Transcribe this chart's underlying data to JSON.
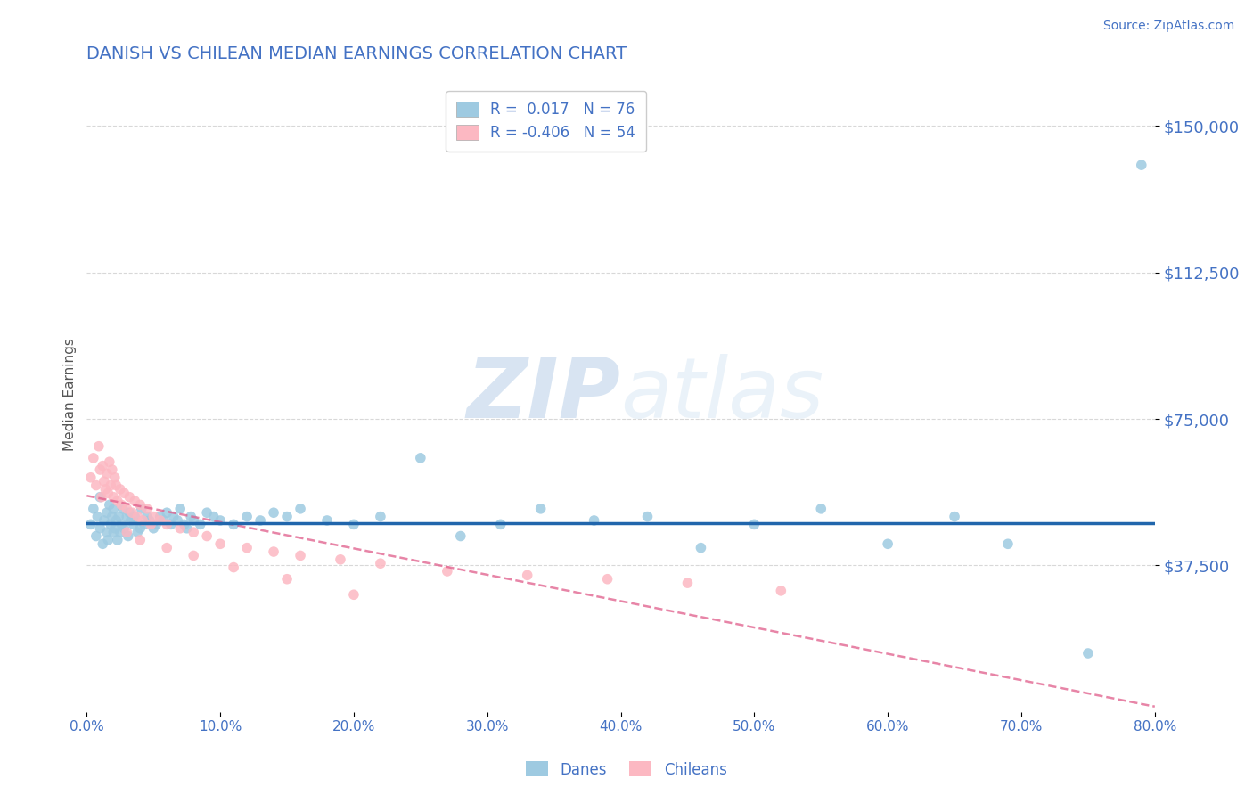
{
  "title": "DANISH VS CHILEAN MEDIAN EARNINGS CORRELATION CHART",
  "source": "Source: ZipAtlas.com",
  "xlabel": "",
  "ylabel": "Median Earnings",
  "xlim": [
    0.0,
    0.8
  ],
  "ylim": [
    0,
    162500
  ],
  "yticks": [
    37500,
    75000,
    112500,
    150000
  ],
  "ytick_labels": [
    "$37,500",
    "$75,000",
    "$112,500",
    "$150,000"
  ],
  "xticks": [
    0.0,
    0.1,
    0.2,
    0.3,
    0.4,
    0.5,
    0.6,
    0.7,
    0.8
  ],
  "xtick_labels": [
    "0.0%",
    "10.0%",
    "20.0%",
    "30.0%",
    "40.0%",
    "50.0%",
    "60.0%",
    "70.0%",
    "80.0%"
  ],
  "dane_color": "#9ecae1",
  "chilean_color": "#fcb8c2",
  "dane_line_color": "#2166ac",
  "chilean_line_color": "#e05c8a",
  "dane_R": 0.017,
  "dane_N": 76,
  "chilean_R": -0.406,
  "chilean_N": 54,
  "watermark_zip": "ZIP",
  "watermark_atlas": "atlas",
  "background_color": "#ffffff",
  "grid_color": "#c8c8c8",
  "title_color": "#4472c4",
  "axis_label_color": "#4472c4",
  "tick_color": "#4472c4",
  "danes_x": [
    0.003,
    0.005,
    0.007,
    0.008,
    0.01,
    0.01,
    0.012,
    0.013,
    0.015,
    0.015,
    0.016,
    0.017,
    0.018,
    0.019,
    0.02,
    0.02,
    0.021,
    0.022,
    0.023,
    0.024,
    0.025,
    0.026,
    0.027,
    0.028,
    0.03,
    0.031,
    0.032,
    0.033,
    0.035,
    0.036,
    0.038,
    0.04,
    0.041,
    0.043,
    0.045,
    0.047,
    0.05,
    0.052,
    0.055,
    0.058,
    0.06,
    0.063,
    0.065,
    0.068,
    0.07,
    0.073,
    0.075,
    0.078,
    0.08,
    0.085,
    0.09,
    0.095,
    0.1,
    0.11,
    0.12,
    0.13,
    0.14,
    0.15,
    0.16,
    0.18,
    0.2,
    0.22,
    0.25,
    0.28,
    0.31,
    0.34,
    0.38,
    0.42,
    0.46,
    0.5,
    0.55,
    0.6,
    0.65,
    0.69,
    0.75,
    0.79
  ],
  "danes_y": [
    48000,
    52000,
    45000,
    50000,
    47000,
    55000,
    43000,
    49000,
    46000,
    51000,
    44000,
    53000,
    48000,
    50000,
    46000,
    52000,
    47000,
    49000,
    44000,
    50000,
    46000,
    48000,
    52000,
    47000,
    50000,
    45000,
    51000,
    49000,
    48000,
    50000,
    46000,
    47000,
    52000,
    48000,
    50000,
    49000,
    47000,
    48000,
    50000,
    49000,
    51000,
    48000,
    50000,
    49000,
    52000,
    48000,
    47000,
    50000,
    49000,
    48000,
    51000,
    50000,
    49000,
    48000,
    50000,
    49000,
    51000,
    50000,
    52000,
    49000,
    48000,
    50000,
    65000,
    45000,
    48000,
    52000,
    49000,
    50000,
    42000,
    48000,
    52000,
    43000,
    50000,
    43000,
    15000,
    140000
  ],
  "chileans_x": [
    0.003,
    0.005,
    0.007,
    0.009,
    0.01,
    0.011,
    0.012,
    0.013,
    0.014,
    0.015,
    0.016,
    0.017,
    0.018,
    0.019,
    0.02,
    0.021,
    0.022,
    0.023,
    0.025,
    0.026,
    0.028,
    0.03,
    0.032,
    0.034,
    0.036,
    0.038,
    0.04,
    0.042,
    0.045,
    0.048,
    0.05,
    0.055,
    0.06,
    0.07,
    0.08,
    0.09,
    0.1,
    0.12,
    0.14,
    0.16,
    0.19,
    0.22,
    0.27,
    0.33,
    0.39,
    0.45,
    0.52,
    0.03,
    0.04,
    0.06,
    0.08,
    0.11,
    0.15,
    0.2
  ],
  "chileans_y": [
    60000,
    65000,
    58000,
    68000,
    62000,
    55000,
    63000,
    59000,
    57000,
    61000,
    56000,
    64000,
    58000,
    62000,
    55000,
    60000,
    58000,
    54000,
    57000,
    53000,
    56000,
    52000,
    55000,
    51000,
    54000,
    50000,
    53000,
    49000,
    52000,
    48000,
    50000,
    49000,
    48000,
    47000,
    46000,
    45000,
    43000,
    42000,
    41000,
    40000,
    39000,
    38000,
    36000,
    35000,
    34000,
    33000,
    31000,
    46000,
    44000,
    42000,
    40000,
    37000,
    34000,
    30000
  ]
}
